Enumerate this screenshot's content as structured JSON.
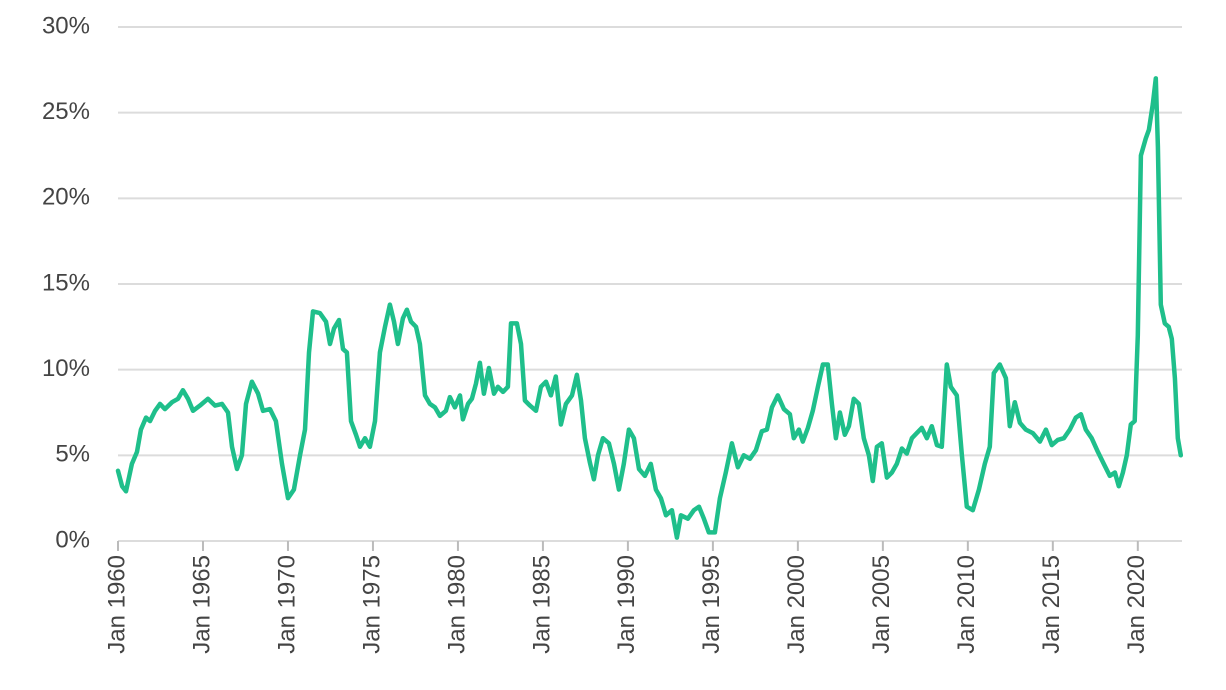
{
  "chart_data": {
    "type": "line",
    "x": [
      1960.0,
      1960.24,
      1960.47,
      1960.82,
      1961.12,
      1961.35,
      1961.65,
      1961.88,
      1962.18,
      1962.47,
      1962.76,
      1963.18,
      1963.53,
      1963.82,
      1964.12,
      1964.41,
      1964.82,
      1965.29,
      1965.71,
      1966.12,
      1966.47,
      1966.71,
      1967.0,
      1967.29,
      1967.53,
      1967.88,
      1968.24,
      1968.53,
      1968.94,
      1969.29,
      1969.65,
      1970.0,
      1970.35,
      1970.71,
      1971.0,
      1971.24,
      1971.47,
      1971.88,
      1972.24,
      1972.47,
      1972.71,
      1973.0,
      1973.24,
      1973.47,
      1973.71,
      1974.0,
      1974.24,
      1974.53,
      1974.82,
      1975.12,
      1975.41,
      1975.71,
      1976.0,
      1976.24,
      1976.47,
      1976.76,
      1977.0,
      1977.24,
      1977.53,
      1977.76,
      1978.06,
      1978.35,
      1978.65,
      1978.94,
      1979.29,
      1979.53,
      1979.82,
      1980.12,
      1980.29,
      1980.59,
      1980.82,
      1981.06,
      1981.29,
      1981.53,
      1981.82,
      1982.12,
      1982.35,
      1982.65,
      1982.94,
      1983.12,
      1983.47,
      1983.71,
      1983.94,
      1984.24,
      1984.59,
      1984.88,
      1985.18,
      1985.47,
      1985.76,
      1986.06,
      1986.35,
      1986.71,
      1987.0,
      1987.24,
      1987.47,
      1987.76,
      1988.0,
      1988.24,
      1988.53,
      1988.88,
      1989.18,
      1989.47,
      1989.76,
      1990.06,
      1990.35,
      1990.65,
      1991.0,
      1991.35,
      1991.65,
      1991.94,
      1992.24,
      1992.59,
      1992.88,
      1993.12,
      1993.53,
      1993.88,
      1994.18,
      1994.47,
      1994.76,
      1995.12,
      1995.41,
      1995.76,
      1996.12,
      1996.47,
      1996.82,
      1997.18,
      1997.53,
      1997.88,
      1998.18,
      1998.47,
      1998.82,
      1999.18,
      1999.53,
      1999.76,
      2000.06,
      2000.29,
      2000.59,
      2000.88,
      2001.18,
      2001.47,
      2001.76,
      2002.0,
      2002.24,
      2002.47,
      2002.76,
      2003.0,
      2003.29,
      2003.59,
      2003.88,
      2004.18,
      2004.41,
      2004.65,
      2004.94,
      2005.24,
      2005.53,
      2005.82,
      2006.12,
      2006.41,
      2006.71,
      2007.0,
      2007.29,
      2007.59,
      2007.88,
      2008.18,
      2008.47,
      2008.76,
      2009.0,
      2009.35,
      2009.65,
      2009.94,
      2010.29,
      2010.65,
      2011.0,
      2011.29,
      2011.53,
      2011.88,
      2012.24,
      2012.47,
      2012.76,
      2013.06,
      2013.41,
      2013.82,
      2014.24,
      2014.59,
      2014.94,
      2015.29,
      2015.65,
      2016.0,
      2016.35,
      2016.65,
      2016.94,
      2017.29,
      2017.65,
      2018.0,
      2018.35,
      2018.65,
      2018.88,
      2019.12,
      2019.35,
      2019.59,
      2019.82,
      2020.0,
      2020.18,
      2020.47,
      2020.65,
      2020.88,
      2021.06,
      2021.18,
      2021.35,
      2021.59,
      2021.82,
      2022.0,
      2022.18,
      2022.35,
      2022.53
    ],
    "series": [
      {
        "color": "#1fbf8b",
        "values": [
          4.1,
          3.2,
          2.9,
          4.5,
          5.2,
          6.5,
          7.2,
          7.0,
          7.6,
          8.0,
          7.7,
          8.1,
          8.3,
          8.8,
          8.3,
          7.6,
          7.9,
          8.3,
          7.9,
          8.0,
          7.5,
          5.5,
          4.2,
          5.0,
          8.0,
          9.3,
          8.6,
          7.6,
          7.7,
          7.0,
          4.5,
          2.5,
          3.0,
          5.0,
          6.5,
          11.0,
          13.4,
          13.3,
          12.8,
          11.5,
          12.4,
          12.9,
          11.2,
          11.0,
          7.0,
          6.2,
          5.5,
          6.0,
          5.5,
          7.0,
          11.0,
          12.5,
          13.8,
          12.8,
          11.5,
          13.0,
          13.5,
          12.8,
          12.5,
          11.5,
          8.5,
          8.0,
          7.8,
          7.3,
          7.6,
          8.4,
          7.8,
          8.5,
          7.1,
          8.0,
          8.3,
          9.2,
          10.4,
          8.6,
          10.1,
          8.6,
          9.0,
          8.7,
          9.0,
          12.7,
          12.7,
          11.5,
          8.2,
          7.9,
          7.6,
          9.0,
          9.3,
          8.5,
          9.6,
          6.8,
          8.0,
          8.5,
          9.7,
          8.2,
          6.0,
          4.6,
          3.6,
          5.0,
          6.0,
          5.7,
          4.5,
          3.0,
          4.5,
          6.5,
          6.0,
          4.2,
          3.8,
          4.5,
          3.0,
          2.5,
          1.5,
          1.8,
          0.2,
          1.5,
          1.3,
          1.8,
          2.0,
          1.3,
          0.5,
          0.5,
          2.5,
          4.0,
          5.7,
          4.3,
          5.0,
          4.8,
          5.3,
          6.4,
          6.5,
          7.8,
          8.5,
          7.7,
          7.4,
          6.0,
          6.5,
          5.8,
          6.6,
          7.6,
          9.0,
          10.3,
          10.3,
          8.0,
          6.0,
          7.5,
          6.2,
          6.7,
          8.3,
          8.0,
          6.0,
          5.0,
          3.5,
          5.5,
          5.7,
          3.7,
          4.0,
          4.5,
          5.4,
          5.1,
          6.0,
          6.3,
          6.6,
          6.0,
          6.7,
          5.6,
          5.5,
          10.3,
          9.0,
          8.5,
          5.0,
          2.0,
          1.8,
          3.0,
          4.5,
          5.5,
          9.8,
          10.3,
          9.5,
          6.7,
          8.1,
          6.9,
          6.5,
          6.3,
          5.8,
          6.5,
          5.6,
          5.9,
          6.0,
          6.5,
          7.2,
          7.4,
          6.5,
          6.0,
          5.2,
          4.5,
          3.8,
          4.0,
          3.2,
          4.0,
          5.0,
          6.8,
          7.0,
          12.0,
          22.5,
          23.5,
          24.0,
          25.5,
          27.0,
          23.0,
          13.8,
          12.7,
          12.5,
          11.8,
          9.5,
          6.0,
          5.0
        ]
      }
    ],
    "xlim": [
      1960,
      2022.6
    ],
    "xticks": [
      {
        "value": 1960,
        "label": "Jan 1960"
      },
      {
        "value": 1965,
        "label": "Jan 1965"
      },
      {
        "value": 1970,
        "label": "Jan 1970"
      },
      {
        "value": 1975,
        "label": "Jan 1975"
      },
      {
        "value": 1980,
        "label": "Jan 1980"
      },
      {
        "value": 1985,
        "label": "Jan 1985"
      },
      {
        "value": 1990,
        "label": "Jan 1990"
      },
      {
        "value": 1995,
        "label": "Jan 1995"
      },
      {
        "value": 2000,
        "label": "Jan 2000"
      },
      {
        "value": 2005,
        "label": "Jan 2005"
      },
      {
        "value": 2010,
        "label": "Jan 2010"
      },
      {
        "value": 2015,
        "label": "Jan 2015"
      },
      {
        "value": 2020,
        "label": "Jan 2020"
      }
    ],
    "ylim": [
      0,
      30
    ],
    "yticks": [
      {
        "value": 0,
        "label": "0%"
      },
      {
        "value": 5,
        "label": "5%"
      },
      {
        "value": 10,
        "label": "10%"
      },
      {
        "value": 15,
        "label": "15%"
      },
      {
        "value": 20,
        "label": "20%"
      },
      {
        "value": 25,
        "label": "25%"
      },
      {
        "value": 30,
        "label": "30%"
      }
    ],
    "grid": true
  }
}
